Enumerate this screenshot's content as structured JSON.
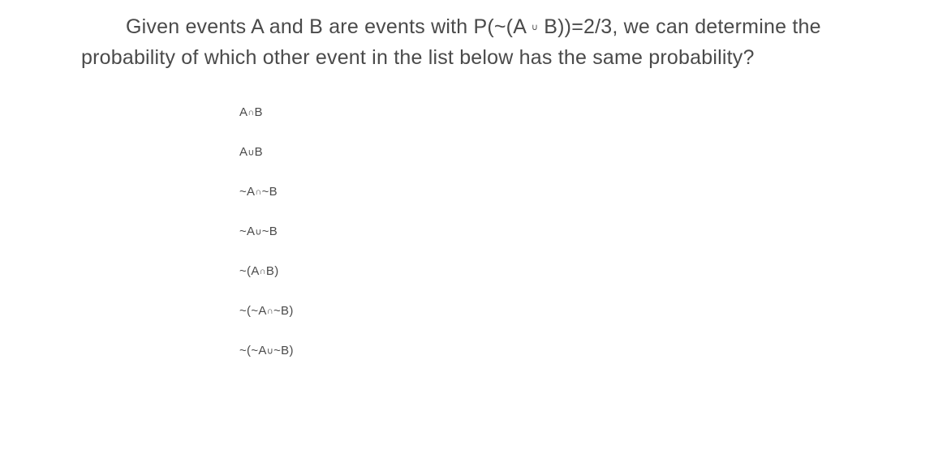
{
  "question": {
    "text_parts": {
      "part1": "Given events A and B are events with P(~(A ",
      "union_symbol": "∪",
      "part2": " B))=2/3, we can determine the probability of which other event in the list below has the same probability?"
    }
  },
  "options": [
    "A∩B",
    "A∪B",
    "~A∩~B",
    "~A∪~B",
    "~(A∩B)",
    "~(~A∩~B)",
    "~(~A∪~B)"
  ],
  "styling": {
    "background_color": "#ffffff",
    "text_color": "#4a4a4a",
    "question_fontsize": 25,
    "option_fontsize": 15,
    "smallcap_fontsize": 11,
    "line_height": 1.5,
    "option_spacing": 32,
    "options_left_margin": 195
  }
}
